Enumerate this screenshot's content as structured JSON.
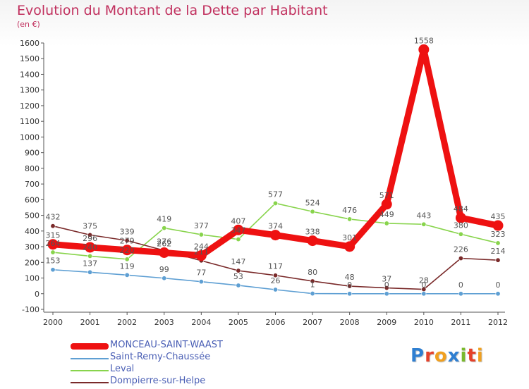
{
  "title": "Evolution du Montant de la Dette par Habitant",
  "subtitle": "(en €)",
  "logo": "Proxiti",
  "chart_data": {
    "type": "line",
    "title": "Evolution du Montant de la Dette par Habitant",
    "ylabel": "(en €)",
    "xlabel": "",
    "ylim": [
      -100,
      1600
    ],
    "yticks": [
      -100,
      0,
      100,
      200,
      300,
      400,
      500,
      600,
      700,
      800,
      900,
      1000,
      1100,
      1200,
      1300,
      1400,
      1500,
      1600
    ],
    "categories": [
      "2000",
      "2001",
      "2002",
      "2003",
      "2004",
      "2005",
      "2006",
      "2007",
      "2008",
      "2009",
      "2010",
      "2011",
      "2012"
    ],
    "legend_position": "bottom-left",
    "grid": false,
    "series": [
      {
        "name": "MONCEAU-SAINT-WAAST",
        "color": "#ee1111",
        "values": [
          315,
          296,
          279,
          262,
          244,
          407,
          374,
          338,
          301,
          571,
          1558,
          484,
          435
        ]
      },
      {
        "name": "Saint-Remy-Chaussée",
        "color": "#5e9fd3",
        "values": [
          153,
          137,
          119,
          99,
          77,
          53,
          26,
          1,
          0,
          0,
          0,
          0,
          0
        ]
      },
      {
        "name": "Leval",
        "color": "#88d44c",
        "values": [
          264,
          240,
          220,
          419,
          377,
          347,
          577,
          524,
          476,
          449,
          443,
          380,
          323
        ]
      },
      {
        "name": "Dompierre-sur-Helpe",
        "color": "#7a2a2a",
        "values": [
          432,
          375,
          339,
          276,
          211,
          147,
          117,
          80,
          48,
          37,
          28,
          226,
          214
        ]
      }
    ],
    "data_labels": [
      {
        "series": 0,
        "labels": [
          "315",
          "296",
          "279",
          "262",
          "244",
          "407",
          "374",
          "338",
          "301",
          "571",
          "1558",
          "484",
          "435"
        ]
      },
      {
        "series": 1,
        "labels": [
          "153",
          "137",
          "119",
          "99",
          "77",
          "53",
          "26",
          "1",
          "0",
          "0",
          "0",
          "0",
          "0"
        ]
      },
      {
        "series": 2,
        "labels": [
          "264",
          "240",
          "220",
          "419",
          "377",
          "347",
          "577",
          "524",
          "476",
          "449",
          "443",
          "380",
          "323"
        ]
      },
      {
        "series": 3,
        "labels": [
          "432",
          "375",
          "339",
          "276",
          "211",
          "147",
          "117",
          "80",
          "48",
          "37",
          "28",
          "226",
          "214"
        ]
      }
    ]
  },
  "legend": [
    {
      "label": "MONCEAU-SAINT-WAAST",
      "color": "#ee1111"
    },
    {
      "label": "Saint-Remy-Chaussée",
      "color": "#5e9fd3"
    },
    {
      "label": "Leval",
      "color": "#88d44c"
    },
    {
      "label": "Dompierre-sur-Helpe",
      "color": "#7a2a2a"
    }
  ]
}
